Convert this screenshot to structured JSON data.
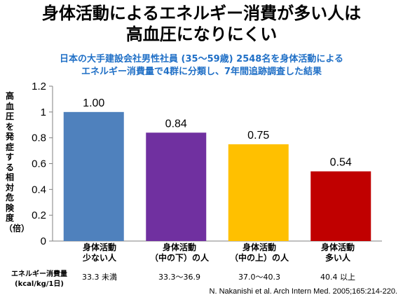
{
  "header": {
    "title_line1": "身体活動によるエネルギー消費が多い人は",
    "title_line2": "高血圧になりにくい",
    "subtitle_line1": "日本の大手建設会社男性社員 (35～59歳) 2548名を身体活動による",
    "subtitle_line2": "エネルギー消費量で4群に分類し、7年間追跡調査した結果"
  },
  "xaxis": {
    "row_label_line1": "エネルギー消費量",
    "row_label_line2": "(kcal/kg/1日)",
    "categories": [
      {
        "line1": "身体活動",
        "line2": "少ない人",
        "range": "33.3 未満"
      },
      {
        "line1": "身体活動",
        "line2": "（中の下）の人",
        "range": "33.3～36.9"
      },
      {
        "line1": "身体活動",
        "line2": "（中の上）の人",
        "range": "37.0～40.3"
      },
      {
        "line1": "身体活動",
        "line2": "多い人",
        "range": "40.4 以上"
      }
    ]
  },
  "citation": "N. Nakanishi et al.   Arch Intern Med. 2005;165:214-220.",
  "chart_data": {
    "type": "bar",
    "categories": [
      "身体活動 少ない人",
      "身体活動（中の下）の人",
      "身体活動（中の上）の人",
      "身体活動 多い人"
    ],
    "values": [
      1.0,
      0.84,
      0.75,
      0.54
    ],
    "value_labels": [
      "1.00",
      "0.84",
      "0.75",
      "0.54"
    ],
    "colors": [
      "#4f81bd",
      "#7030a0",
      "#ffc000",
      "#c00000"
    ],
    "ylabel": "高血圧を発症する相対危険度（倍）",
    "ylim": [
      0,
      1.2
    ],
    "yticks": [
      0,
      0.2,
      0.4,
      0.6,
      0.8,
      1,
      1.2
    ],
    "ytick_labels": [
      "0",
      "0.2",
      "0.4",
      "0.6",
      "0.8",
      "1",
      "1.2"
    ],
    "grid": false,
    "legend": "none"
  }
}
